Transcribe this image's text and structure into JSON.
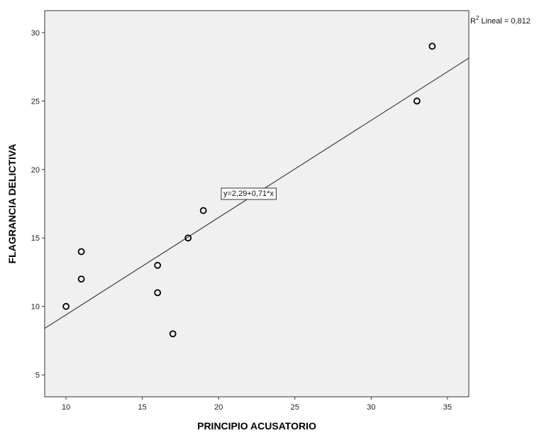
{
  "chart_data": {
    "type": "scatter",
    "title": "",
    "xlabel": "PRINCIPIO ACUSATORIO",
    "ylabel": "FLAGRANCIA DELICTIVA",
    "xlim": [
      8.6,
      36.4
    ],
    "ylim": [
      3.4,
      31.6
    ],
    "xticks": [
      10,
      15,
      20,
      25,
      30,
      35
    ],
    "yticks": [
      5,
      10,
      15,
      20,
      25,
      30
    ],
    "grid": false,
    "points": [
      {
        "x": 10,
        "y": 10
      },
      {
        "x": 11,
        "y": 14
      },
      {
        "x": 11,
        "y": 12
      },
      {
        "x": 16,
        "y": 13
      },
      {
        "x": 16,
        "y": 11
      },
      {
        "x": 17,
        "y": 8
      },
      {
        "x": 18,
        "y": 15
      },
      {
        "x": 19,
        "y": 17
      },
      {
        "x": 33,
        "y": 25
      },
      {
        "x": 34,
        "y": 29
      }
    ],
    "fit_line": {
      "intercept": 2.29,
      "slope": 0.71
    },
    "annotations": {
      "equation": "y=2,29+0,71*x",
      "r2_prefix": "R",
      "r2_superscript": "2",
      "r2_text": " Lineal = 0,812"
    },
    "colors": {
      "plot_background": "#f0f0f0",
      "marker": "#000000",
      "fit_line": "#444444"
    }
  }
}
